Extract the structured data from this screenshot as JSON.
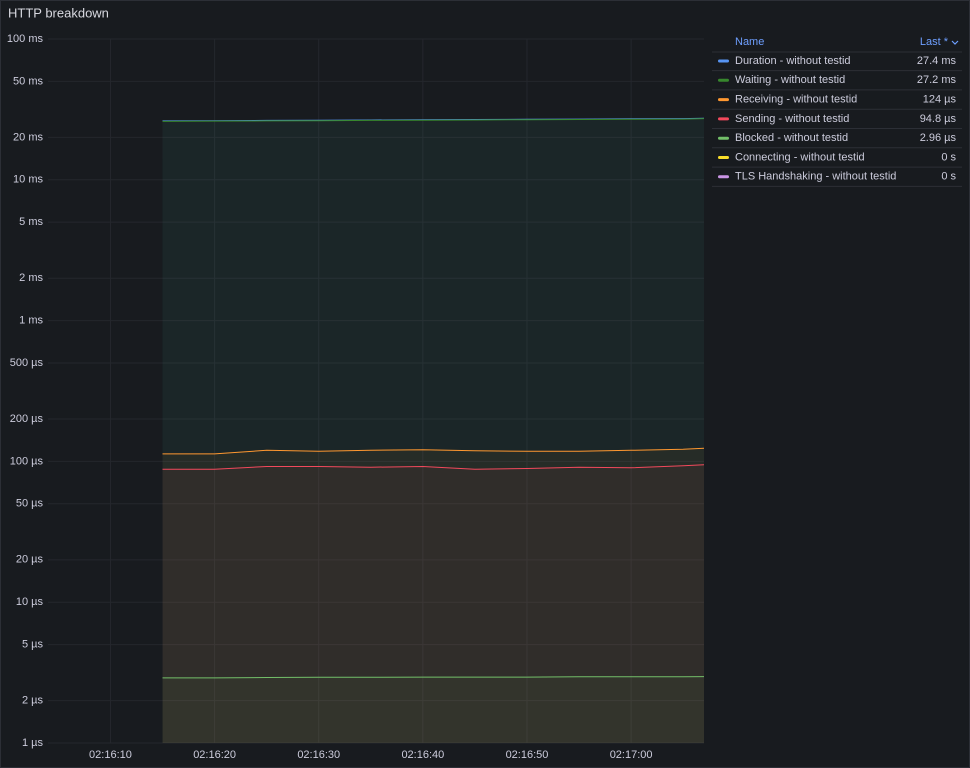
{
  "chart_data": {
    "type": "line",
    "title": "HTTP breakdown",
    "log_scale": true,
    "grid": true,
    "x": [
      "02:16:15",
      "02:16:20",
      "02:16:25",
      "02:16:30",
      "02:16:35",
      "02:16:40",
      "02:16:45",
      "02:16:50",
      "02:16:55",
      "02:17:00",
      "02:17:05",
      "02:17:07"
    ],
    "xlim": [
      "02:16:04",
      "02:17:07"
    ],
    "xticks": [
      "02:16:10",
      "02:16:20",
      "02:16:30",
      "02:16:40",
      "02:16:50",
      "02:17:00"
    ],
    "ylim": [
      1,
      100000
    ],
    "yticks": [
      {
        "value": 1,
        "label": "1 µs"
      },
      {
        "value": 2,
        "label": "2 µs"
      },
      {
        "value": 5,
        "label": "5 µs"
      },
      {
        "value": 10,
        "label": "10 µs"
      },
      {
        "value": 20,
        "label": "20 µs"
      },
      {
        "value": 50,
        "label": "50 µs"
      },
      {
        "value": 100,
        "label": "100 µs"
      },
      {
        "value": 200,
        "label": "200 µs"
      },
      {
        "value": 500,
        "label": "500 µs"
      },
      {
        "value": 1000,
        "label": "1 ms"
      },
      {
        "value": 2000,
        "label": "2 ms"
      },
      {
        "value": 5000,
        "label": "5 ms"
      },
      {
        "value": 10000,
        "label": "10 ms"
      },
      {
        "value": 20000,
        "label": "20 ms"
      },
      {
        "value": 50000,
        "label": "50 ms"
      },
      {
        "value": 100000,
        "label": "100 ms"
      }
    ],
    "legend": {
      "position": "right",
      "columns": [
        "Name",
        "Last *"
      ]
    },
    "series": [
      {
        "name": "Duration - without testid",
        "color": "#5794f2",
        "last": 27400,
        "last_label": "27.4 ms",
        "values": [
          26200,
          26300,
          26400,
          26500,
          26600,
          26700,
          26800,
          26900,
          27000,
          27100,
          27200,
          27400
        ]
      },
      {
        "name": "Waiting - without testid",
        "color": "#37872d",
        "last": 27200,
        "last_label": "27.2 ms",
        "values": [
          26000,
          26100,
          26200,
          26300,
          26400,
          26500,
          26600,
          26700,
          26800,
          26900,
          27000,
          27200
        ]
      },
      {
        "name": "Receiving - without testid",
        "color": "#ff9830",
        "last": 124,
        "last_label": "124 µs",
        "values": [
          113,
          113,
          120,
          118,
          120,
          121,
          119,
          118,
          118,
          120,
          122,
          124
        ]
      },
      {
        "name": "Sending - without testid",
        "color": "#f2495c",
        "last": 94.8,
        "last_label": "94.8 µs",
        "values": [
          88,
          88,
          92,
          92,
          91,
          92,
          88,
          89,
          91,
          90,
          93,
          94.8
        ]
      },
      {
        "name": "Blocked - without testid",
        "color": "#73bf69",
        "last": 2.96,
        "last_label": "2.96 µs",
        "values": [
          2.9,
          2.9,
          2.92,
          2.93,
          2.93,
          2.94,
          2.94,
          2.94,
          2.95,
          2.95,
          2.95,
          2.96
        ]
      },
      {
        "name": "Connecting - without testid",
        "color": "#fade2a",
        "last": 0,
        "last_label": "0 s"
      },
      {
        "name": "TLS Handshaking - without testid",
        "color": "#ca95e5",
        "last": 0,
        "last_label": "0 s"
      }
    ]
  }
}
